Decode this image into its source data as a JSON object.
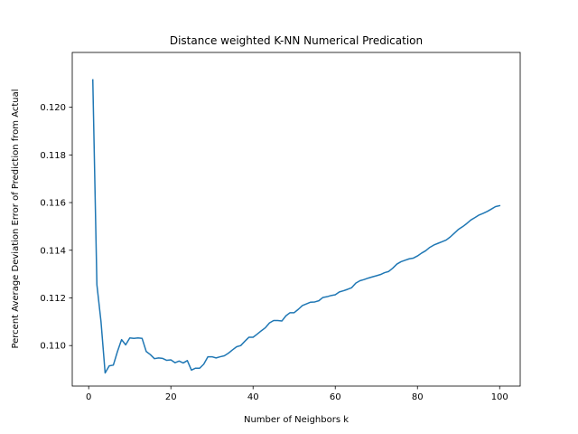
{
  "chart_data": {
    "type": "line",
    "title": "Distance weighted K-NN Numerical Predication",
    "xlabel": "Number of Neighbors k",
    "ylabel": "Percent Average Deviation Error of Prediction from Actual",
    "xlim": [
      -4,
      105
    ],
    "ylim": [
      0.1083,
      0.1223
    ],
    "xticks": [
      0,
      20,
      40,
      60,
      80,
      100
    ],
    "xtick_labels": [
      "0",
      "20",
      "40",
      "60",
      "80",
      "100"
    ],
    "yticks": [
      0.11,
      0.112,
      0.114,
      0.116,
      0.118,
      0.12
    ],
    "ytick_labels": [
      "0.110",
      "0.112",
      "0.114",
      "0.116",
      "0.118",
      "0.120"
    ],
    "grid": false,
    "legend": "none",
    "series": [
      {
        "color": "#1f77b4",
        "x": [
          1,
          2,
          3,
          4,
          5,
          6,
          7,
          8,
          9,
          10,
          11,
          12,
          13,
          14,
          15,
          16,
          17,
          18,
          19,
          20,
          21,
          22,
          23,
          24,
          25,
          26,
          27,
          28,
          29,
          30,
          31,
          32,
          33,
          34,
          35,
          36,
          37,
          38,
          39,
          40,
          41,
          42,
          43,
          44,
          45,
          46,
          47,
          48,
          49,
          50,
          51,
          52,
          53,
          54,
          55,
          56,
          57,
          58,
          59,
          60,
          61,
          62,
          63,
          64,
          65,
          66,
          67,
          68,
          69,
          70,
          71,
          72,
          73,
          74,
          75,
          76,
          77,
          78,
          79,
          80,
          81,
          82,
          83,
          84,
          85,
          86,
          87,
          88,
          89,
          90,
          91,
          92,
          93,
          94,
          95,
          96,
          97,
          98,
          99,
          100
        ],
        "y": [
          0.12115,
          0.11255,
          0.111,
          0.10885,
          0.10915,
          0.10918,
          0.10975,
          0.11025,
          0.11003,
          0.11032,
          0.1103,
          0.11032,
          0.1103,
          0.10975,
          0.10962,
          0.10945,
          0.10948,
          0.10946,
          0.10938,
          0.1094,
          0.10928,
          0.10935,
          0.10927,
          0.10937,
          0.10897,
          0.10905,
          0.10905,
          0.10922,
          0.10953,
          0.10953,
          0.10948,
          0.10953,
          0.10957,
          0.10968,
          0.10982,
          0.10995,
          0.11,
          0.11018,
          0.11035,
          0.11035,
          0.11048,
          0.11062,
          0.11075,
          0.11095,
          0.11105,
          0.11105,
          0.11103,
          0.11125,
          0.11138,
          0.11138,
          0.11152,
          0.11168,
          0.11175,
          0.11182,
          0.11183,
          0.11188,
          0.11202,
          0.11205,
          0.1121,
          0.11213,
          0.11225,
          0.1123,
          0.11236,
          0.11243,
          0.11262,
          0.11272,
          0.11277,
          0.11283,
          0.11288,
          0.11293,
          0.11298,
          0.11306,
          0.11311,
          0.11325,
          0.11342,
          0.11352,
          0.11358,
          0.11364,
          0.11367,
          0.11376,
          0.11388,
          0.11398,
          0.11412,
          0.11422,
          0.11429,
          0.11436,
          0.11443,
          0.11456,
          0.11472,
          0.11488,
          0.11499,
          0.11512,
          0.11527,
          0.11537,
          0.11548,
          0.11555,
          0.11563,
          0.11573,
          0.11583,
          0.11587
        ]
      }
    ]
  }
}
